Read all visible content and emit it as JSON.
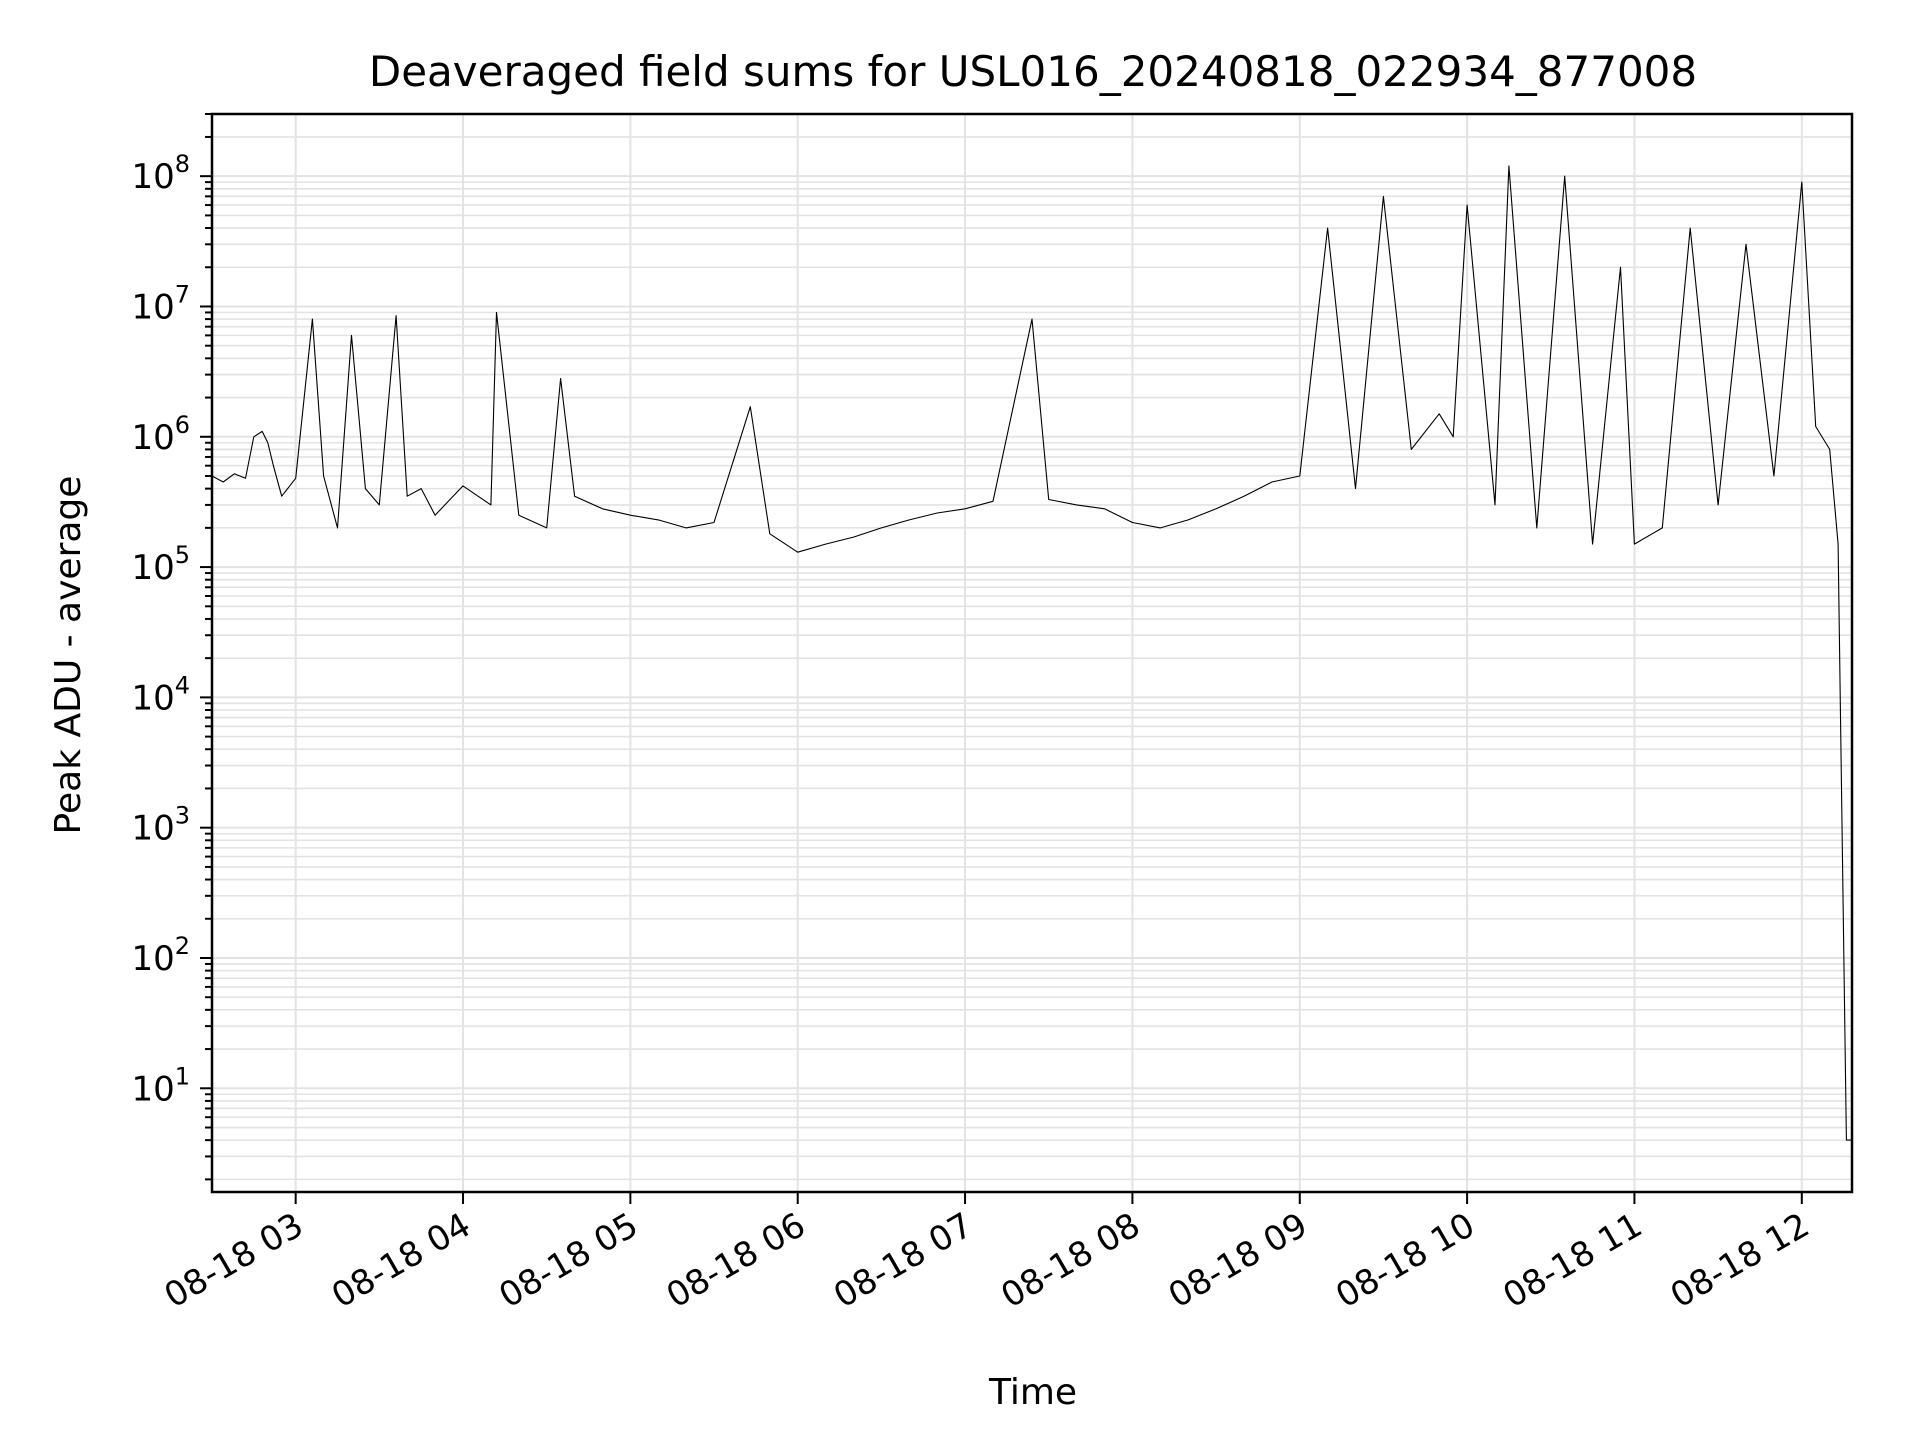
{
  "chart_data": {
    "type": "line",
    "title": "Deaveraged field sums for USL016_20240818_022934_877008",
    "xlabel": "Time",
    "ylabel": "Peak ADU - average",
    "yscale": "log",
    "ylim": [
      1.6,
      300000000
    ],
    "xlim": [
      "08-18 02:30",
      "08-18 12:18"
    ],
    "grid": true,
    "legend": "none",
    "line_color": "#000000",
    "x_ticks": [
      {
        "label": "08-18 03",
        "t": "08-18 03:00"
      },
      {
        "label": "08-18 04",
        "t": "08-18 04:00"
      },
      {
        "label": "08-18 05",
        "t": "08-18 05:00"
      },
      {
        "label": "08-18 06",
        "t": "08-18 06:00"
      },
      {
        "label": "08-18 07",
        "t": "08-18 07:00"
      },
      {
        "label": "08-18 08",
        "t": "08-18 08:00"
      },
      {
        "label": "08-18 09",
        "t": "08-18 09:00"
      },
      {
        "label": "08-18 10",
        "t": "08-18 10:00"
      },
      {
        "label": "08-18 11",
        "t": "08-18 11:00"
      },
      {
        "label": "08-18 12",
        "t": "08-18 12:00"
      }
    ],
    "y_ticks": [
      {
        "base": "10",
        "exp": "1",
        "value": 10
      },
      {
        "base": "10",
        "exp": "2",
        "value": 100
      },
      {
        "base": "10",
        "exp": "3",
        "value": 1000
      },
      {
        "base": "10",
        "exp": "4",
        "value": 10000
      },
      {
        "base": "10",
        "exp": "5",
        "value": 100000
      },
      {
        "base": "10",
        "exp": "6",
        "value": 1000000
      },
      {
        "base": "10",
        "exp": "7",
        "value": 10000000
      },
      {
        "base": "10",
        "exp": "8",
        "value": 100000000
      }
    ],
    "series": [
      {
        "points": [
          [
            "08-18 02:30",
            500000
          ],
          [
            "08-18 02:34",
            450000
          ],
          [
            "08-18 02:38",
            520000
          ],
          [
            "08-18 02:42",
            480000
          ],
          [
            "08-18 02:45",
            1000000
          ],
          [
            "08-18 02:48",
            1100000
          ],
          [
            "08-18 02:50",
            900000
          ],
          [
            "08-18 02:52",
            600000
          ],
          [
            "08-18 02:55",
            350000
          ],
          [
            "08-18 03:00",
            480000
          ],
          [
            "08-18 03:06",
            8000000
          ],
          [
            "08-18 03:10",
            500000
          ],
          [
            "08-18 03:15",
            200000
          ],
          [
            "08-18 03:20",
            6000000
          ],
          [
            "08-18 03:25",
            400000
          ],
          [
            "08-18 03:30",
            300000
          ],
          [
            "08-18 03:36",
            8500000
          ],
          [
            "08-18 03:40",
            350000
          ],
          [
            "08-18 03:45",
            400000
          ],
          [
            "08-18 03:50",
            250000
          ],
          [
            "08-18 04:00",
            420000
          ],
          [
            "08-18 04:10",
            300000
          ],
          [
            "08-18 04:12",
            9000000
          ],
          [
            "08-18 04:20",
            250000
          ],
          [
            "08-18 04:30",
            200000
          ],
          [
            "08-18 04:35",
            2800000
          ],
          [
            "08-18 04:40",
            350000
          ],
          [
            "08-18 04:50",
            280000
          ],
          [
            "08-18 05:00",
            250000
          ],
          [
            "08-18 05:10",
            230000
          ],
          [
            "08-18 05:20",
            200000
          ],
          [
            "08-18 05:30",
            220000
          ],
          [
            "08-18 05:43",
            1700000
          ],
          [
            "08-18 05:50",
            180000
          ],
          [
            "08-18 06:00",
            130000
          ],
          [
            "08-18 06:10",
            150000
          ],
          [
            "08-18 06:20",
            170000
          ],
          [
            "08-18 06:30",
            200000
          ],
          [
            "08-18 06:40",
            230000
          ],
          [
            "08-18 06:50",
            260000
          ],
          [
            "08-18 07:00",
            280000
          ],
          [
            "08-18 07:10",
            320000
          ],
          [
            "08-18 07:24",
            8000000
          ],
          [
            "08-18 07:30",
            330000
          ],
          [
            "08-18 07:40",
            300000
          ],
          [
            "08-18 07:50",
            280000
          ],
          [
            "08-18 08:00",
            220000
          ],
          [
            "08-18 08:10",
            200000
          ],
          [
            "08-18 08:20",
            230000
          ],
          [
            "08-18 08:30",
            280000
          ],
          [
            "08-18 08:40",
            350000
          ],
          [
            "08-18 08:50",
            450000
          ],
          [
            "08-18 09:00",
            500000
          ],
          [
            "08-18 09:10",
            40000000
          ],
          [
            "08-18 09:20",
            400000
          ],
          [
            "08-18 09:30",
            70000000
          ],
          [
            "08-18 09:40",
            800000
          ],
          [
            "08-18 09:50",
            1500000
          ],
          [
            "08-18 09:55",
            1000000
          ],
          [
            "08-18 10:00",
            60000000
          ],
          [
            "08-18 10:10",
            300000
          ],
          [
            "08-18 10:15",
            120000000
          ],
          [
            "08-18 10:25",
            200000
          ],
          [
            "08-18 10:35",
            100000000
          ],
          [
            "08-18 10:45",
            150000
          ],
          [
            "08-18 10:55",
            20000000
          ],
          [
            "08-18 11:00",
            150000
          ],
          [
            "08-18 11:10",
            200000
          ],
          [
            "08-18 11:20",
            40000000
          ],
          [
            "08-18 11:30",
            300000
          ],
          [
            "08-18 11:40",
            30000000
          ],
          [
            "08-18 11:50",
            500000
          ],
          [
            "08-18 12:00",
            90000000
          ],
          [
            "08-18 12:05",
            1200000
          ],
          [
            "08-18 12:10",
            800000
          ],
          [
            "08-18 12:13",
            150000
          ],
          [
            "08-18 12:16",
            4
          ],
          [
            "08-18 12:18",
            4
          ]
        ]
      }
    ]
  }
}
